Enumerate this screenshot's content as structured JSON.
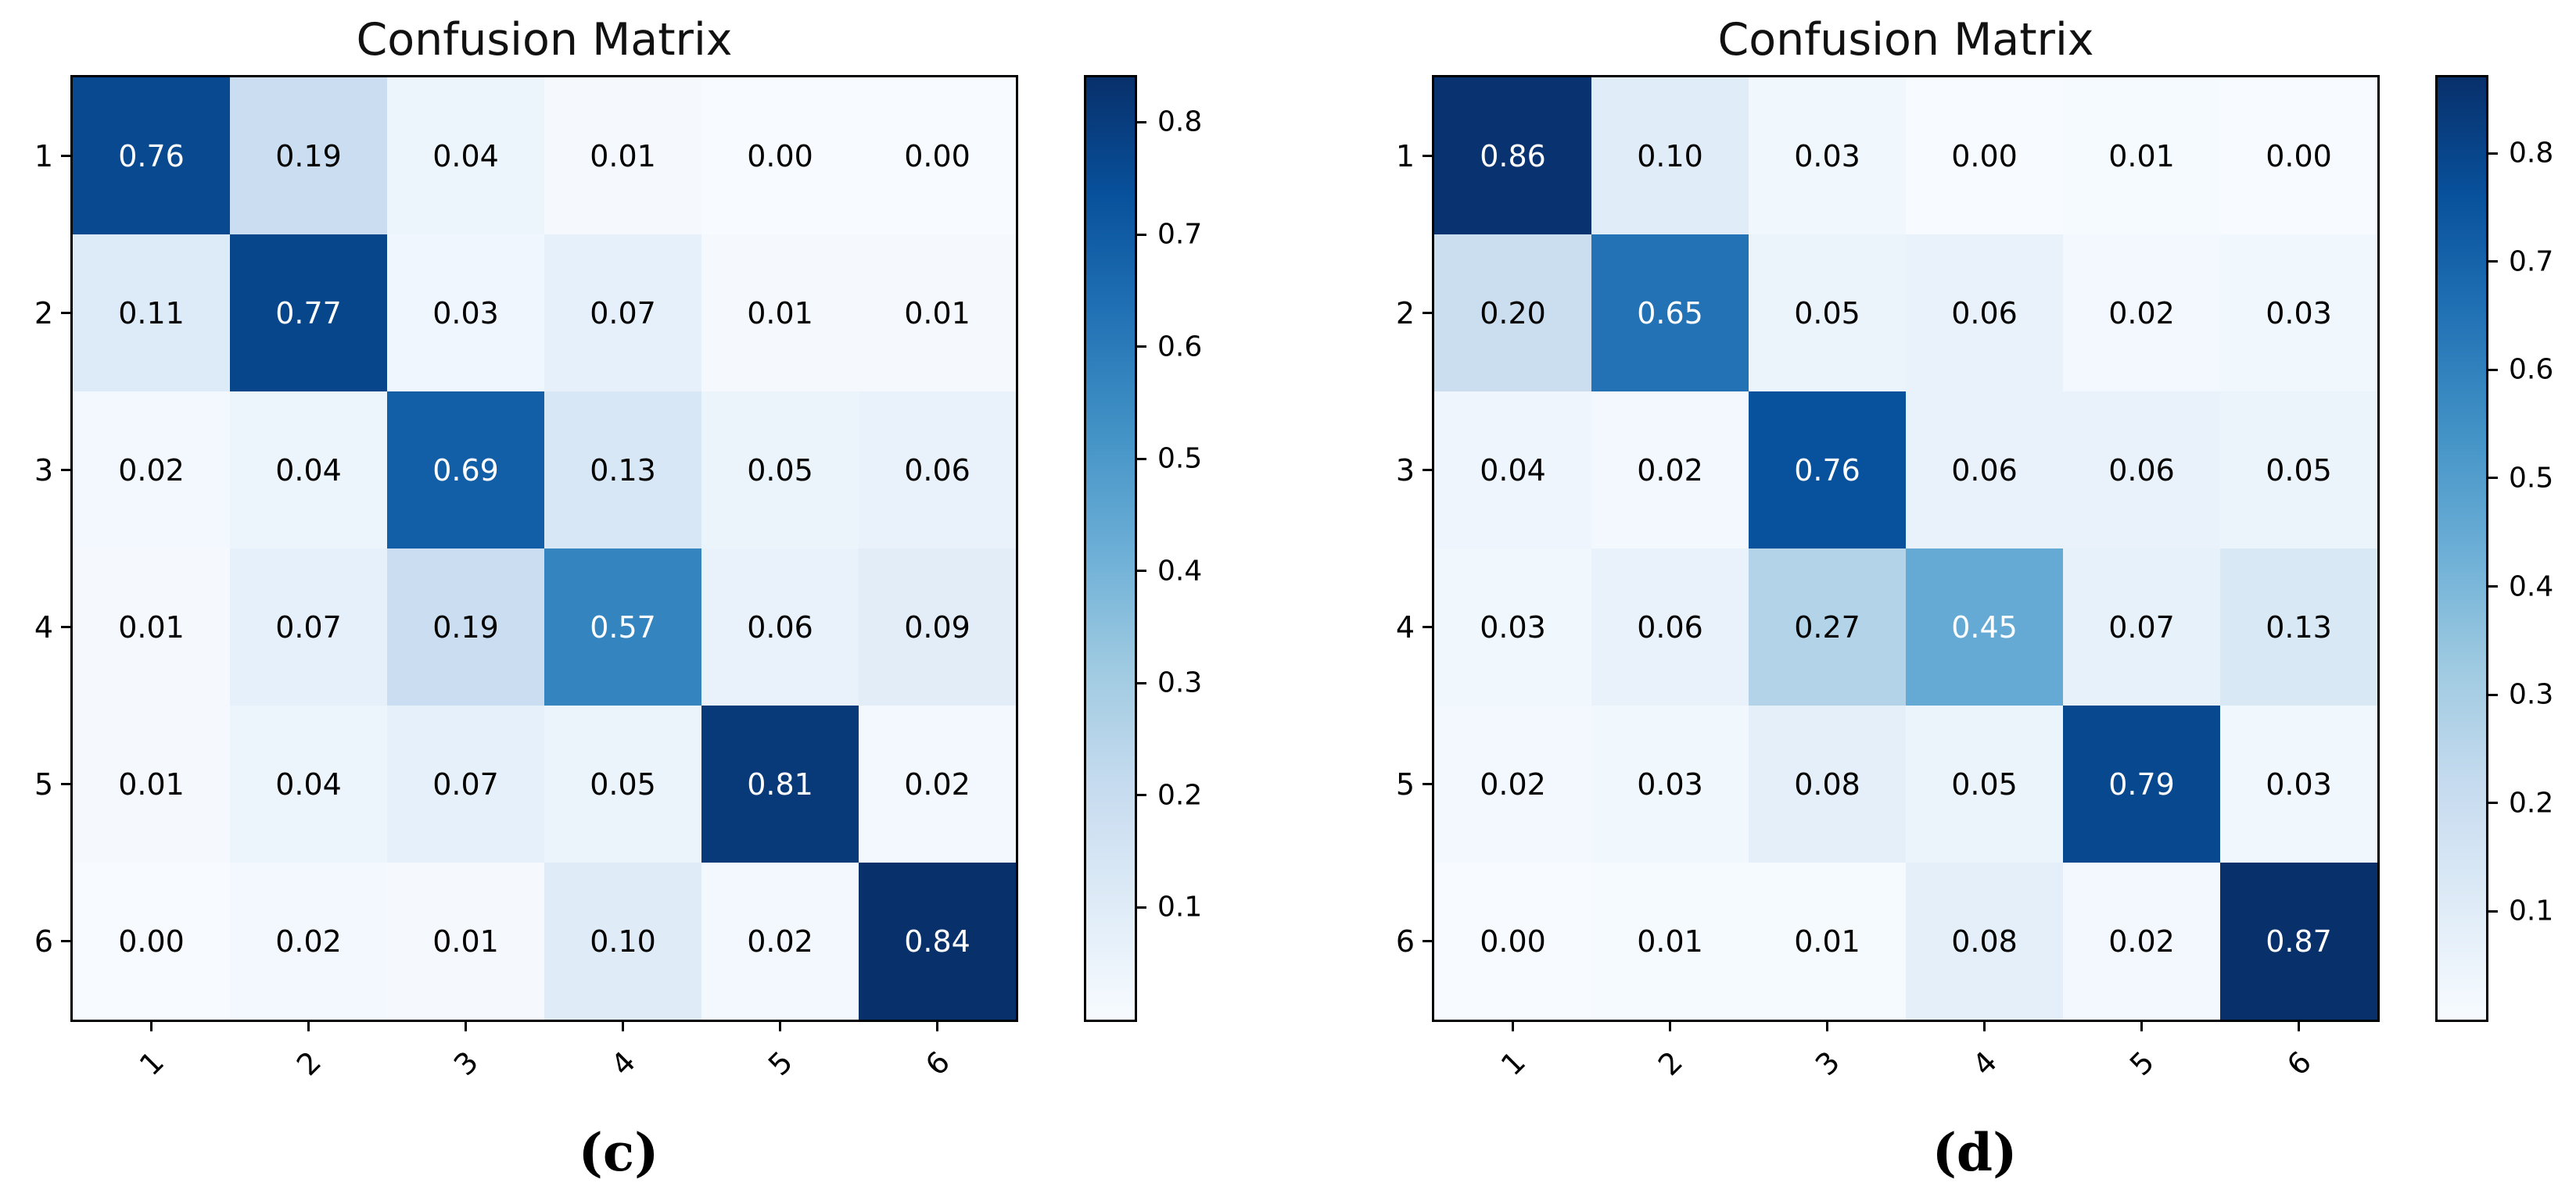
{
  "chart_data": [
    {
      "type": "heatmap",
      "panel_label": "(c)",
      "title": "Confusion Matrix",
      "x_ticklabels": [
        "1",
        "2",
        "3",
        "4",
        "5",
        "6"
      ],
      "y_ticklabels": [
        "1",
        "2",
        "3",
        "4",
        "5",
        "6"
      ],
      "matrix": [
        [
          0.76,
          0.19,
          0.04,
          0.01,
          0.0,
          0.0
        ],
        [
          0.11,
          0.77,
          0.03,
          0.07,
          0.01,
          0.01
        ],
        [
          0.02,
          0.04,
          0.69,
          0.13,
          0.05,
          0.06
        ],
        [
          0.01,
          0.07,
          0.19,
          0.57,
          0.06,
          0.09
        ],
        [
          0.01,
          0.04,
          0.07,
          0.05,
          0.81,
          0.02
        ],
        [
          0.0,
          0.02,
          0.01,
          0.1,
          0.02,
          0.84
        ]
      ],
      "vmin": 0.0,
      "vmax": 0.84,
      "colormap": "Blues",
      "colorbar_ticks": [
        0.1,
        0.2,
        0.3,
        0.4,
        0.5,
        0.6,
        0.7,
        0.8
      ],
      "colorbar_position": "right",
      "x_tick_rotation_deg": 45
    },
    {
      "type": "heatmap",
      "panel_label": "(d)",
      "title": "Confusion Matrix",
      "x_ticklabels": [
        "1",
        "2",
        "3",
        "4",
        "5",
        "6"
      ],
      "y_ticklabels": [
        "1",
        "2",
        "3",
        "4",
        "5",
        "6"
      ],
      "matrix": [
        [
          0.86,
          0.1,
          0.03,
          0.0,
          0.01,
          0.0
        ],
        [
          0.2,
          0.65,
          0.05,
          0.06,
          0.02,
          0.03
        ],
        [
          0.04,
          0.02,
          0.76,
          0.06,
          0.06,
          0.05
        ],
        [
          0.03,
          0.06,
          0.27,
          0.45,
          0.07,
          0.13
        ],
        [
          0.02,
          0.03,
          0.08,
          0.05,
          0.79,
          0.03
        ],
        [
          0.0,
          0.01,
          0.01,
          0.08,
          0.02,
          0.87
        ]
      ],
      "vmin": 0.0,
      "vmax": 0.87,
      "colormap": "Blues",
      "colorbar_ticks": [
        0.1,
        0.2,
        0.3,
        0.4,
        0.5,
        0.6,
        0.7,
        0.8
      ],
      "colorbar_position": "right",
      "x_tick_rotation_deg": 45
    }
  ],
  "colors": {
    "background": "#ffffff",
    "axes_frame": "#000000",
    "tick_color": "#000000",
    "label_text": "#000000",
    "cell_text_low": "#000000",
    "cell_text_high": "#ffffff",
    "colormap_blues": [
      "#f7fbff",
      "#deebf7",
      "#c6dbef",
      "#9ecae1",
      "#6baed6",
      "#4292c6",
      "#2171b5",
      "#08519c",
      "#08306b"
    ]
  }
}
